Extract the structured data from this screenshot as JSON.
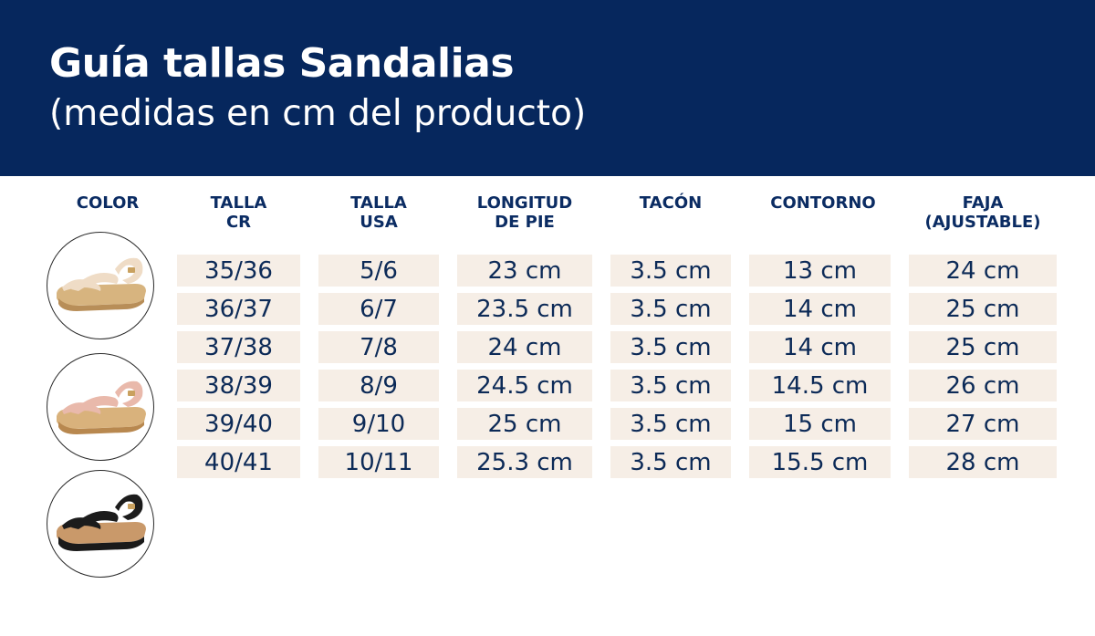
{
  "header": {
    "title": "Guía tallas Sandalias",
    "subtitle": "(medidas en cm del producto)",
    "background_color": "#06275d"
  },
  "table": {
    "columns": [
      {
        "line1": "COLOR",
        "line2": ""
      },
      {
        "line1": "TALLA",
        "line2": "CR"
      },
      {
        "line1": "TALLA",
        "line2": "USA"
      },
      {
        "line1": "LONGITUD",
        "line2": "DE PIE"
      },
      {
        "line1": "TACÓN",
        "line2": ""
      },
      {
        "line1": "CONTORNO",
        "line2": ""
      },
      {
        "line1": "FAJA",
        "line2": "(AJUSTABLE)"
      }
    ],
    "rows": [
      [
        "35/36",
        "5/6",
        "23 cm",
        "3.5 cm",
        "13 cm",
        "24 cm"
      ],
      [
        "36/37",
        "6/7",
        "23.5 cm",
        "3.5 cm",
        "14 cm",
        "25 cm"
      ],
      [
        "37/38",
        "7/8",
        "24 cm",
        "3.5 cm",
        "14 cm",
        "25 cm"
      ],
      [
        "38/39",
        "8/9",
        "24.5 cm",
        "3.5 cm",
        "14.5 cm",
        "26 cm"
      ],
      [
        "39/40",
        "9/10",
        "25 cm",
        "3.5 cm",
        "15 cm",
        "27 cm"
      ],
      [
        "40/41",
        "10/11",
        "25.3 cm",
        "3.5 cm",
        "15.5 cm",
        "28 cm"
      ]
    ],
    "cell_color": "#f6eee6",
    "text_color": "#0c2a57"
  },
  "colors": [
    {
      "icon": "beige-sandal-icon",
      "strap": "#efdcc6"
    },
    {
      "icon": "pink-sandal-icon",
      "strap": "#e9b9ab"
    },
    {
      "icon": "black-sandal-icon",
      "strap": "#1c1c1c"
    }
  ]
}
